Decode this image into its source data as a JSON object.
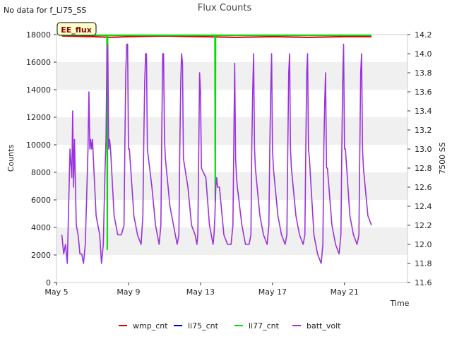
{
  "header": {
    "no_data_text": "No data for f_Li75_SS",
    "title": "Flux Counts",
    "ee_flux_label": "EE_flux"
  },
  "colors": {
    "wmp_cnt": "#dd0000",
    "li75_cnt": "#0000cc",
    "li77_cnt": "#00dd00",
    "batt_volt": "#9933dd",
    "band": "#f0f0f0"
  },
  "chart_data": {
    "type": "line",
    "title": "Flux Counts",
    "xlabel": "Time",
    "ylabel": "Counts",
    "y2label": "7500 SS",
    "xlim": [
      0,
      19.5
    ],
    "ylim": [
      0,
      18000
    ],
    "y2lim": [
      11.6,
      14.2
    ],
    "x_ticks": [
      {
        "x": 0,
        "label": "May 5"
      },
      {
        "x": 4,
        "label": "May 9"
      },
      {
        "x": 8,
        "label": "May 13"
      },
      {
        "x": 12,
        "label": "May 17"
      },
      {
        "x": 16,
        "label": "May 21"
      }
    ],
    "y_ticks": [
      0,
      2000,
      4000,
      6000,
      8000,
      10000,
      12000,
      14000,
      16000,
      18000
    ],
    "y2_ticks": [
      "11.6",
      "11.8",
      "12.0",
      "12.2",
      "12.4",
      "12.6",
      "12.8",
      "13.0",
      "13.2",
      "13.4",
      "13.6",
      "13.8",
      "14.0",
      "14.2"
    ],
    "legend": [
      "wmp_cnt",
      "li75_cnt",
      "li77_cnt",
      "batt_volt"
    ],
    "legend_placement": "bottom",
    "series": [
      {
        "name": "wmp_cnt",
        "axis": "left",
        "x": [
          0.3,
          2,
          3,
          4,
          6,
          8,
          10,
          12,
          14,
          16,
          17.5
        ],
        "values": [
          17900,
          17850,
          17800,
          17850,
          17900,
          17850,
          17800,
          17850,
          17800,
          17850,
          17850
        ]
      },
      {
        "name": "li77_cnt",
        "axis": "left",
        "x": [
          0.3,
          2.8,
          2.82,
          2.84,
          2.86,
          8.8,
          8.82,
          8.84,
          8.86,
          17.5
        ],
        "values": [
          17950,
          17950,
          2400,
          17950,
          17950,
          17950,
          5900,
          17950,
          17950,
          17950
        ]
      },
      {
        "name": "batt_volt",
        "axis": "right",
        "x": [
          0.3,
          0.4,
          0.5,
          0.6,
          0.75,
          0.85,
          0.9,
          0.95,
          1.0,
          1.1,
          1.2,
          1.25,
          1.3,
          1.4,
          1.5,
          1.55,
          1.6,
          1.75,
          1.8,
          1.85,
          1.9,
          1.95,
          2.0,
          2.05,
          2.2,
          2.3,
          2.4,
          2.5,
          2.55,
          2.6,
          2.65,
          2.7,
          2.75,
          2.8,
          2.85,
          2.9,
          2.95,
          3.0,
          3.2,
          3.4,
          3.6,
          3.75,
          3.8,
          3.85,
          3.9,
          3.95,
          4.0,
          4.05,
          4.3,
          4.5,
          4.7,
          4.8,
          4.85,
          4.9,
          4.95,
          5.0,
          5.05,
          5.3,
          5.5,
          5.7,
          5.8,
          5.85,
          5.9,
          5.95,
          6.0,
          6.05,
          6.3,
          6.5,
          6.7,
          6.8,
          6.85,
          6.9,
          6.95,
          7.0,
          7.05,
          7.3,
          7.5,
          7.7,
          7.8,
          7.85,
          7.9,
          7.95,
          8.0,
          8.05,
          8.3,
          8.5,
          8.7,
          8.75,
          8.8,
          8.85,
          8.9,
          8.95,
          9.0,
          9.05,
          9.3,
          9.5,
          9.7,
          9.8,
          9.85,
          9.9,
          9.95,
          10.0,
          10.05,
          10.3,
          10.5,
          10.7,
          10.8,
          10.85,
          10.9,
          10.95,
          11.0,
          11.05,
          11.3,
          11.5,
          11.7,
          11.8,
          11.85,
          11.9,
          11.95,
          12.0,
          12.05,
          12.3,
          12.5,
          12.7,
          12.8,
          12.85,
          12.9,
          12.95,
          13.0,
          13.05,
          13.3,
          13.5,
          13.7,
          13.8,
          13.85,
          13.9,
          13.95,
          14.0,
          14.05,
          14.3,
          14.5,
          14.7,
          14.8,
          14.85,
          14.9,
          14.95,
          15.0,
          15.05,
          15.3,
          15.5,
          15.7,
          15.8,
          15.85,
          15.9,
          15.95,
          16.0,
          16.05,
          16.3,
          16.5,
          16.7,
          16.8,
          16.85,
          16.9,
          16.95,
          17.0,
          17.05,
          17.3,
          17.5
        ],
        "values": [
          12.1,
          11.9,
          12.0,
          11.8,
          13.0,
          12.7,
          13.4,
          12.6,
          13.1,
          12.2,
          12.1,
          12.0,
          11.9,
          11.9,
          11.8,
          11.9,
          12.0,
          13.0,
          13.6,
          13.0,
          13.1,
          13.0,
          13.1,
          12.9,
          12.3,
          12.2,
          12.1,
          11.8,
          11.9,
          12.0,
          12.4,
          12.8,
          13.1,
          14.0,
          14.1,
          13.0,
          13.1,
          13.0,
          12.3,
          12.1,
          12.1,
          12.2,
          13.1,
          13.8,
          14.1,
          14.1,
          13.0,
          13.0,
          12.3,
          12.1,
          12.0,
          12.3,
          13.1,
          13.7,
          14.0,
          14.0,
          13.0,
          12.6,
          12.2,
          12.0,
          12.2,
          13.2,
          14.0,
          14.0,
          13.1,
          12.9,
          12.4,
          12.2,
          12.0,
          12.1,
          13.0,
          13.7,
          14.0,
          13.9,
          12.9,
          12.6,
          12.2,
          12.1,
          12.0,
          12.1,
          12.9,
          13.8,
          13.6,
          12.8,
          12.7,
          12.2,
          12.0,
          12.1,
          12.3,
          12.6,
          12.7,
          12.6,
          12.6,
          12.6,
          12.1,
          12.0,
          12.0,
          12.2,
          13.0,
          13.9,
          12.9,
          12.7,
          12.6,
          12.2,
          12.0,
          12.0,
          12.1,
          13.0,
          13.6,
          14.0,
          13.0,
          12.8,
          12.3,
          12.1,
          12.0,
          12.2,
          13.0,
          13.6,
          14.0,
          13.0,
          12.8,
          12.3,
          12.1,
          12.0,
          12.1,
          13.0,
          13.8,
          14.0,
          13.0,
          12.8,
          12.3,
          12.1,
          12.0,
          12.1,
          13.0,
          13.8,
          14.0,
          13.0,
          12.9,
          12.1,
          11.9,
          11.8,
          12.0,
          13.0,
          13.5,
          13.8,
          12.8,
          12.8,
          12.2,
          12.0,
          11.9,
          12.1,
          13.0,
          13.7,
          14.1,
          13.0,
          13.0,
          12.3,
          12.1,
          12.0,
          12.1,
          13.0,
          13.8,
          14.0,
          13.0,
          12.8,
          12.3,
          12.2
        ]
      }
    ]
  }
}
